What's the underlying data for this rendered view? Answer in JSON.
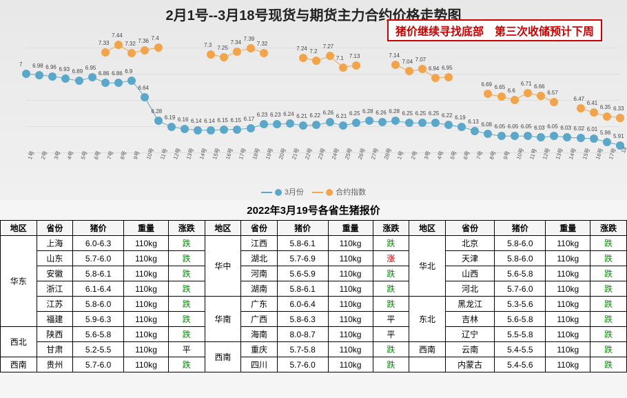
{
  "chart": {
    "title": "2月1号--3月18号现货与期货主力合约价格走势图",
    "banner": "猪价继续寻找底部　第三次收储预计下周",
    "series": {
      "spot": {
        "label": "3月份",
        "color": "#5ba7c9"
      },
      "futures": {
        "label": "合约指数",
        "color": "#f2a44a"
      }
    },
    "ylim": [
      5.6,
      7.6
    ],
    "xlabels": [
      "1号",
      "2号",
      "3号",
      "4号",
      "5号",
      "6号",
      "7号",
      "8号",
      "9号",
      "10号",
      "11号",
      "12号",
      "13号",
      "14号",
      "15号",
      "16号",
      "17号",
      "18号",
      "19号",
      "20号",
      "21号",
      "22号",
      "23号",
      "24号",
      "25号",
      "26号",
      "27号",
      "28号",
      "1号",
      "2号",
      "3号",
      "4号",
      "5号",
      "6号",
      "7号",
      "8号",
      "9号",
      "10号",
      "11号",
      "12号",
      "13号",
      "14号",
      "15号",
      "16号",
      "17号",
      "18号"
    ],
    "spot_values": [
      7.0,
      6.98,
      6.96,
      6.93,
      6.89,
      6.95,
      6.86,
      6.86,
      6.9,
      6.64,
      6.28,
      6.19,
      6.16,
      6.14,
      6.14,
      6.15,
      6.15,
      6.17,
      6.23,
      6.23,
      6.24,
      6.21,
      6.22,
      6.26,
      6.21,
      6.25,
      6.28,
      6.26,
      6.28,
      6.25,
      6.25,
      6.25,
      6.22,
      6.19,
      6.13,
      6.08,
      6.05,
      6.05,
      6.05,
      6.03,
      6.05,
      6.03,
      6.02,
      6.01,
      5.96,
      5.91
    ],
    "futures_values": [
      null,
      null,
      null,
      null,
      null,
      null,
      7.33,
      7.44,
      7.32,
      7.36,
      7.4,
      null,
      null,
      null,
      7.3,
      7.25,
      7.34,
      7.39,
      7.32,
      null,
      null,
      7.24,
      7.2,
      7.27,
      7.1,
      7.13,
      null,
      null,
      7.14,
      7.04,
      7.07,
      6.94,
      6.95,
      null,
      null,
      6.69,
      6.65,
      6.6,
      6.71,
      6.66,
      6.57,
      null,
      6.47,
      6.41,
      6.35,
      6.33
    ],
    "label_fontsize": 8,
    "marker_size": 12,
    "line_width": 2,
    "background_gradient": [
      "#e8e8e8",
      "#f0f0f0"
    ],
    "grid_color": "#dddddd"
  },
  "table": {
    "title": "2022年3月19号各省生猪报价",
    "headers": [
      "地区",
      "省份",
      "猪价",
      "重量",
      "涨跌"
    ],
    "up_color": "#c00000",
    "down_color": "#0a8a0a",
    "blocks": [
      {
        "region": "华东",
        "rows": [
          {
            "prov": "上海",
            "price": "6.0-6.3",
            "wt": "110kg",
            "chg": "跌"
          },
          {
            "prov": "山东",
            "price": "5.7-6.0",
            "wt": "110kg",
            "chg": "跌"
          },
          {
            "prov": "安徽",
            "price": "5.8-6.1",
            "wt": "110kg",
            "chg": "跌"
          },
          {
            "prov": "浙江",
            "price": "6.1-6.4",
            "wt": "110kg",
            "chg": "跌"
          },
          {
            "prov": "江苏",
            "price": "5.8-6.0",
            "wt": "110kg",
            "chg": "跌"
          },
          {
            "prov": "福建",
            "price": "5.9-6.3",
            "wt": "110kg",
            "chg": "跌"
          }
        ]
      },
      {
        "region": "西北",
        "rows": [
          {
            "prov": "陕西",
            "price": "5.6-5.8",
            "wt": "110kg",
            "chg": "跌"
          },
          {
            "prov": "甘肃",
            "price": "5.2-5.5",
            "wt": "110kg",
            "chg": "平"
          }
        ]
      },
      {
        "region": "西南",
        "rows": [
          {
            "prov": "贵州",
            "price": "5.7-6.0",
            "wt": "110kg",
            "chg": "跌"
          }
        ]
      },
      {
        "region": "华中",
        "rows": [
          {
            "prov": "江西",
            "price": "5.8-6.1",
            "wt": "110kg",
            "chg": "跌"
          },
          {
            "prov": "湖北",
            "price": "5.7-6.9",
            "wt": "110kg",
            "chg": "涨"
          },
          {
            "prov": "河南",
            "price": "5.6-5.9",
            "wt": "110kg",
            "chg": "跌"
          },
          {
            "prov": "湖南",
            "price": "5.8-6.1",
            "wt": "110kg",
            "chg": "跌"
          }
        ]
      },
      {
        "region": "华南",
        "rows": [
          {
            "prov": "广东",
            "price": "6.0-6.4",
            "wt": "110kg",
            "chg": "跌"
          },
          {
            "prov": "广西",
            "price": "5.8-6.3",
            "wt": "110kg",
            "chg": "平"
          },
          {
            "prov": "海南",
            "price": "8.0-8.7",
            "wt": "110kg",
            "chg": "平"
          }
        ]
      },
      {
        "region": "西南",
        "rows": [
          {
            "prov": "重庆",
            "price": "5.7-5.8",
            "wt": "110kg",
            "chg": "跌"
          },
          {
            "prov": "四川",
            "price": "5.7-6.0",
            "wt": "110kg",
            "chg": "跌"
          }
        ]
      },
      {
        "region": "华北",
        "rows": [
          {
            "prov": "北京",
            "price": "5.8-6.0",
            "wt": "110kg",
            "chg": "跌"
          },
          {
            "prov": "天津",
            "price": "5.8-6.0",
            "wt": "110kg",
            "chg": "跌"
          },
          {
            "prov": "山西",
            "price": "5.6-5.8",
            "wt": "110kg",
            "chg": "跌"
          },
          {
            "prov": "河北",
            "price": "5.7-6.0",
            "wt": "110kg",
            "chg": "跌"
          }
        ]
      },
      {
        "region": "东北",
        "rows": [
          {
            "prov": "黑龙江",
            "price": "5.3-5.6",
            "wt": "110kg",
            "chg": "跌"
          },
          {
            "prov": "吉林",
            "price": "5.6-5.8",
            "wt": "110kg",
            "chg": "跌"
          },
          {
            "prov": "辽宁",
            "price": "5.5-5.8",
            "wt": "110kg",
            "chg": "跌"
          }
        ]
      },
      {
        "region": "西南",
        "rows": [
          {
            "prov": "云南",
            "price": "5.4-5.5",
            "wt": "110kg",
            "chg": "跌"
          }
        ]
      },
      {
        "region": "",
        "rows": [
          {
            "prov": "内蒙古",
            "price": "5.4-5.6",
            "wt": "110kg",
            "chg": "跌"
          }
        ]
      }
    ]
  }
}
